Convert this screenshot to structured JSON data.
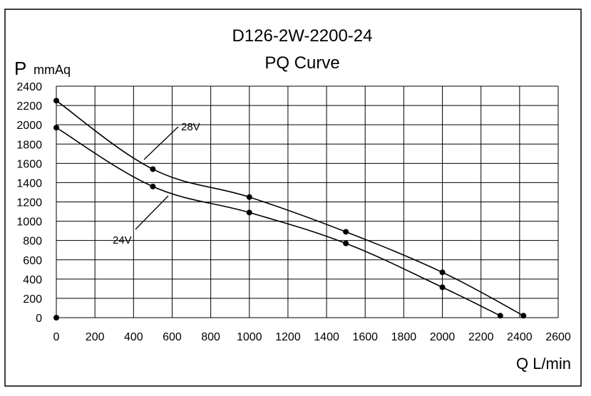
{
  "chart_data": {
    "type": "line",
    "title": "D126-2W-2200-24",
    "subtitle": "PQ Curve",
    "ylabel_symbol": "P",
    "ylabel_unit": "mmAq",
    "xlabel": "Q L/min",
    "xlim": [
      0,
      2600
    ],
    "ylim": [
      0,
      2400
    ],
    "x_ticks": [
      "0",
      "200",
      "400",
      "600",
      "800",
      "1000",
      "1200",
      "1400",
      "1600",
      "1800",
      "2000",
      "2200",
      "2400",
      "2600"
    ],
    "y_ticks": [
      "0",
      "200",
      "400",
      "600",
      "800",
      "1000",
      "1200",
      "1400",
      "1600",
      "1800",
      "2000",
      "2200",
      "2400"
    ],
    "grid": true,
    "series": [
      {
        "name": "28V",
        "x": [
          0,
          500,
          1000,
          1500,
          2000,
          2420
        ],
        "y": [
          2250,
          1540,
          1250,
          890,
          470,
          20
        ]
      },
      {
        "name": "24V",
        "x": [
          0,
          500,
          1000,
          1500,
          2000,
          2300
        ],
        "y": [
          1970,
          1360,
          1090,
          770,
          315,
          20
        ]
      }
    ],
    "extra_points": [
      {
        "x": 0,
        "y": 0
      }
    ]
  }
}
